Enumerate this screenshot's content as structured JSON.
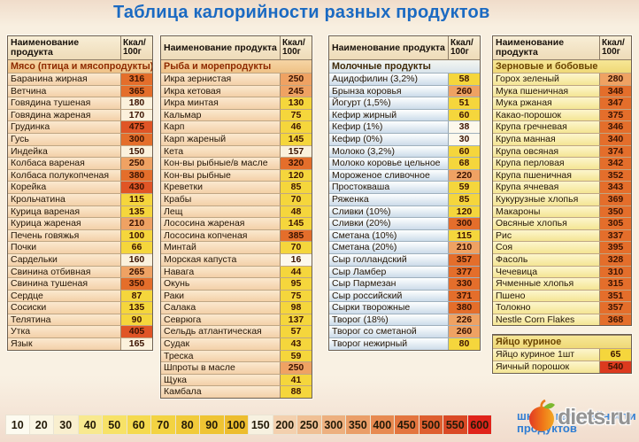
{
  "title": "Таблица калорийности разных продуктов",
  "table_header": {
    "name": "Наименование продукта",
    "kcal_line1": "Ккал/",
    "kcal_line2": "100г"
  },
  "columns": [
    {
      "tables": [
        {
          "with_header": true,
          "theme": "meat",
          "section": "Мясо (птица и мясопродукты)",
          "rows": [
            [
              "Баранина жирная",
              316
            ],
            [
              "Ветчина",
              365
            ],
            [
              "Говядина тушеная",
              180
            ],
            [
              "Говядина жареная",
              170
            ],
            [
              "Грудинка",
              475
            ],
            [
              "Гусь",
              300
            ],
            [
              "Индейка",
              150
            ],
            [
              "Колбаса вареная",
              250
            ],
            [
              "Колбаса полукопченая",
              380
            ],
            [
              "Корейка",
              430
            ],
            [
              "Крольчатина",
              115
            ],
            [
              "Курица вареная",
              135
            ],
            [
              "Курица жареная",
              210
            ],
            [
              "Печень говяжья",
              100
            ],
            [
              "Почки",
              66
            ],
            [
              "Сардельки",
              160
            ],
            [
              "Свинина отбивная",
              265
            ],
            [
              "Свинина тушеная",
              350
            ],
            [
              "Сердце",
              87
            ],
            [
              "Сосиски",
              135
            ],
            [
              "Телятина",
              90
            ],
            [
              "Утка",
              405
            ],
            [
              "Язык",
              165
            ]
          ]
        }
      ]
    },
    {
      "tables": [
        {
          "with_header": true,
          "theme": "fish",
          "section": "Рыба и морепродукты",
          "rows": [
            [
              "Икра зернистая",
              250
            ],
            [
              "Икра кетовая",
              245
            ],
            [
              "Икра минтая",
              130
            ],
            [
              "Кальмар",
              75
            ],
            [
              "Карп",
              46
            ],
            [
              "Карп жареный",
              145
            ],
            [
              "Кета",
              157
            ],
            [
              "Кон-вы рыбные/в масле",
              320
            ],
            [
              "Кон-вы рыбные",
              120
            ],
            [
              "Креветки",
              85
            ],
            [
              "Крабы",
              70
            ],
            [
              "Лещ",
              48
            ],
            [
              "Лососина жареная",
              145
            ],
            [
              "Лососина копченая",
              385
            ],
            [
              "Минтай",
              70
            ],
            [
              "Морская капуста",
              16
            ],
            [
              "Навага",
              44
            ],
            [
              "Окунь",
              95
            ],
            [
              "Раки",
              75
            ],
            [
              "Салака",
              98
            ],
            [
              "Севрюга",
              137
            ],
            [
              "Сельдь атлантическая",
              57
            ],
            [
              "Судак",
              43
            ],
            [
              "Треска",
              59
            ],
            [
              "Шпроты в масле",
              250
            ],
            [
              "Щука",
              41
            ],
            [
              "Камбала",
              88
            ]
          ]
        }
      ]
    },
    {
      "tables": [
        {
          "with_header": true,
          "theme": "dairy",
          "section": "Молочные продукты",
          "rows": [
            [
              "Ацидофилин (3,2%)",
              58
            ],
            [
              "Брынза коровья",
              260
            ],
            [
              "Йогурт (1,5%)",
              51
            ],
            [
              "Кефир жирный",
              60
            ],
            [
              "Кефир (1%)",
              38
            ],
            [
              "Кефир (0%)",
              30
            ],
            [
              "Молоко (3,2%)",
              60
            ],
            [
              "Молоко коровье цельное",
              68
            ],
            [
              "Мороженое сливочное",
              220
            ],
            [
              "Простокваша",
              59
            ],
            [
              "Ряженка",
              85
            ],
            [
              "Сливки (10%)",
              120
            ],
            [
              "Сливки (20%)",
              300
            ],
            [
              "Сметана (10%)",
              115
            ],
            [
              "Сметана (20%)",
              210
            ],
            [
              "Сыр голландский",
              357
            ],
            [
              "Сыр Ламбер",
              377
            ],
            [
              "Сыр Пармезан",
              330
            ],
            [
              "Сыр российский",
              371
            ],
            [
              "Сырки творожные",
              380
            ],
            [
              "Творог (18%)",
              226
            ],
            [
              "Творог со сметаной",
              260
            ],
            [
              "Творог нежирный",
              80
            ]
          ]
        }
      ]
    },
    {
      "tables": [
        {
          "with_header": true,
          "theme": "grain",
          "section": "Зерновые и бобовые",
          "rows": [
            [
              "Горох зеленый",
              280
            ],
            [
              "Мука пшеничная",
              348
            ],
            [
              "Мука ржаная",
              347
            ],
            [
              "Какао-порошок",
              375
            ],
            [
              "Крупа гречневая",
              346
            ],
            [
              "Крупа манная",
              340
            ],
            [
              "Крупа овсяная",
              374
            ],
            [
              "Крупа перловая",
              342
            ],
            [
              "Крупа пшеничная",
              352
            ],
            [
              "Крупа ячневая",
              343
            ],
            [
              "Кукурузные хлопья",
              369
            ],
            [
              "Макароны",
              350
            ],
            [
              "Овсяные хлопья",
              305
            ],
            [
              "Рис",
              337
            ],
            [
              "Соя",
              395
            ],
            [
              "Фасоль",
              328
            ],
            [
              "Чечевица",
              310
            ],
            [
              "Ячменные хлопья",
              315
            ],
            [
              "Пшено",
              351
            ],
            [
              "Толокно",
              357
            ],
            [
              "Nestle Corn Flakes",
              368
            ]
          ]
        },
        {
          "with_header": false,
          "theme": "grain",
          "section": "Яйцо куриное",
          "rows": [
            [
              "Яйцо куриное 1шт",
              65
            ],
            [
              "Яичный порошок",
              540
            ]
          ]
        }
      ]
    }
  ],
  "value_buckets": [
    {
      "max": 39,
      "bg": "#fdf8ec"
    },
    {
      "max": 149,
      "bg": "#f5d63c"
    },
    {
      "max": 199,
      "bg": "#fbf1dc"
    },
    {
      "max": 299,
      "bg": "#efa263"
    },
    {
      "max": 399,
      "bg": "#e46e2b"
    },
    {
      "max": 499,
      "bg": "#e05526"
    },
    {
      "max": 599,
      "bg": "#dc3a1e"
    },
    {
      "max": 99999,
      "bg": "#e42419"
    }
  ],
  "scale": {
    "caption": "шкала калорийности продуктов",
    "cells": [
      {
        "label": "10",
        "color": "#fdfbf0"
      },
      {
        "label": "20",
        "color": "#fbf6e4"
      },
      {
        "label": "30",
        "color": "#f9efcf"
      },
      {
        "label": "40",
        "color": "#f8e98f"
      },
      {
        "label": "50",
        "color": "#f7e267"
      },
      {
        "label": "60",
        "color": "#f5da4e"
      },
      {
        "label": "70",
        "color": "#f3d342"
      },
      {
        "label": "80",
        "color": "#f1cb3a"
      },
      {
        "label": "90",
        "color": "#efc433"
      },
      {
        "label": "100",
        "color": "#edbd2e"
      },
      {
        "label": "150",
        "color": "#f7f1e0"
      },
      {
        "label": "200",
        "color": "#f3d0ae"
      },
      {
        "label": "250",
        "color": "#f0c095"
      },
      {
        "label": "300",
        "color": "#edb07f"
      },
      {
        "label": "350",
        "color": "#ea9e68"
      },
      {
        "label": "400",
        "color": "#e78a51"
      },
      {
        "label": "450",
        "color": "#e3753f"
      },
      {
        "label": "500",
        "color": "#de5f30"
      },
      {
        "label": "550",
        "color": "#da4a26"
      },
      {
        "label": "600",
        "color": "#e0241b"
      }
    ]
  },
  "logo": {
    "text": "diets.ru"
  }
}
